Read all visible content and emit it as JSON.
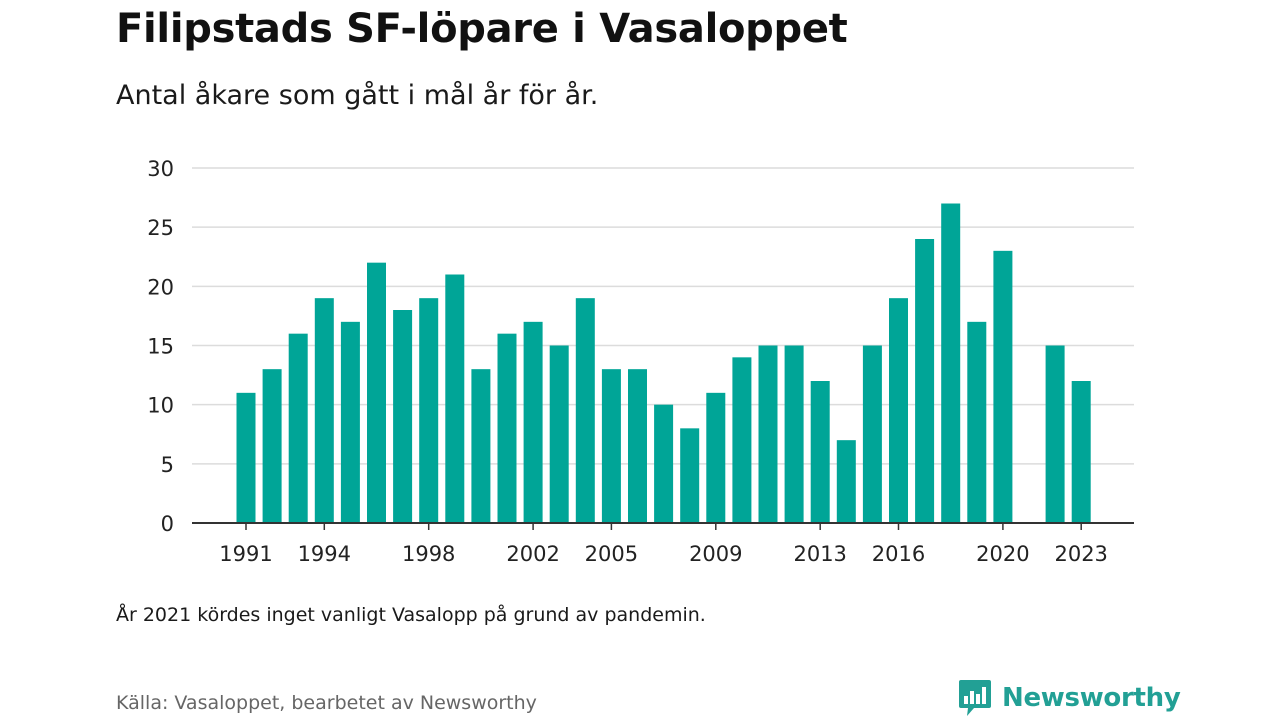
{
  "title": "Filipstads SF-löpare i Vasaloppet",
  "subtitle": "Antal åkare som gått i mål år för år.",
  "note": "År 2021 kördes inget vanligt Vasalopp på grund av pandemin.",
  "source": "Källa: Vasaloppet, bearbetet av Newsworthy",
  "brand": {
    "name": "Newsworthy",
    "icon": "newsworthy-logo-icon",
    "color": "#22a095"
  },
  "colors": {
    "bar": "#00a597",
    "grid": "#dcdcdc",
    "axis": "#333333"
  },
  "chart_data": {
    "type": "bar",
    "title": "Filipstads SF-löpare i Vasaloppet",
    "xlabel": "",
    "ylabel": "",
    "ylim": [
      0,
      30
    ],
    "yticks": [
      0,
      5,
      10,
      15,
      20,
      25,
      30
    ],
    "xtick_labels": [
      1991,
      1994,
      1998,
      2002,
      2005,
      2009,
      2013,
      2016,
      2020,
      2023
    ],
    "grid": true,
    "legend": "none",
    "categories": [
      1991,
      1992,
      1993,
      1994,
      1995,
      1996,
      1997,
      1998,
      1999,
      2000,
      2001,
      2002,
      2003,
      2004,
      2005,
      2006,
      2007,
      2008,
      2009,
      2010,
      2011,
      2012,
      2013,
      2014,
      2015,
      2016,
      2017,
      2018,
      2019,
      2020,
      2021,
      2022,
      2023
    ],
    "values": [
      11,
      13,
      16,
      19,
      17,
      22,
      18,
      19,
      21,
      13,
      16,
      17,
      15,
      19,
      13,
      13,
      10,
      8,
      11,
      14,
      15,
      15,
      12,
      7,
      15,
      19,
      24,
      27,
      17,
      23,
      null,
      15,
      12
    ]
  }
}
